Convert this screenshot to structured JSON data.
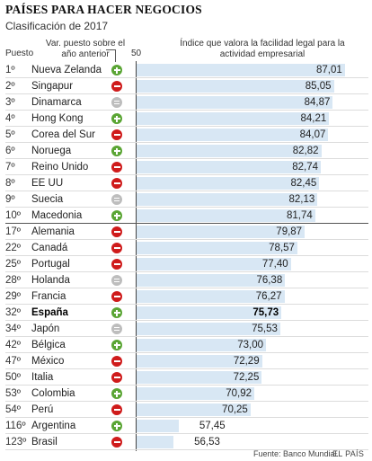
{
  "header": {
    "title": "PAÍSES PARA HACER NEGOCIOS",
    "subtitle": "Clasificación de 2017",
    "col_rank": "Puesto",
    "col_change": "Var. puesto sobre el año anterior",
    "axis_start": "50",
    "col_index": "Índice que valora la facilidad legal para la actividad empresarial"
  },
  "colors": {
    "bar": "#d8e7f4",
    "up": "#5aa534",
    "down": "#cf1b1b",
    "same": "#bdbdbd"
  },
  "chart_data": {
    "type": "bar",
    "orientation": "horizontal",
    "xlim": [
      50,
      88
    ],
    "categories": [
      "Nueva Zelanda",
      "Singapur",
      "Dinamarca",
      "Hong Kong",
      "Corea del Sur",
      "Noruega",
      "Reino Unido",
      "EE UU",
      "Suecia",
      "Macedonia",
      "Alemania",
      "Canadá",
      "Portugal",
      "Holanda",
      "Francia",
      "España",
      "Japón",
      "Bélgica",
      "México",
      "Italia",
      "Colombia",
      "Perú",
      "Argentina",
      "Brasil"
    ],
    "ranks": [
      "1º",
      "2º",
      "3º",
      "4º",
      "5º",
      "6º",
      "7º",
      "8º",
      "9º",
      "10º",
      "17º",
      "22º",
      "25º",
      "28º",
      "29º",
      "32º",
      "34º",
      "42º",
      "47º",
      "50º",
      "53º",
      "54º",
      "116º",
      "123º"
    ],
    "values": [
      87.01,
      85.05,
      84.87,
      84.21,
      84.07,
      82.82,
      82.74,
      82.45,
      82.13,
      81.74,
      79.87,
      78.57,
      77.4,
      76.38,
      76.27,
      75.73,
      75.53,
      73.0,
      72.29,
      72.25,
      70.92,
      70.25,
      57.45,
      56.53
    ],
    "labels": [
      "87,01",
      "85,05",
      "84,87",
      "84,21",
      "84,07",
      "82,82",
      "82,74",
      "82,45",
      "82,13",
      "81,74",
      "79,87",
      "78,57",
      "77,40",
      "76,38",
      "76,27",
      "75,73",
      "75,53",
      "73,00",
      "72,29",
      "72,25",
      "70,92",
      "70,25",
      "57,45",
      "56,53"
    ],
    "change": [
      "up",
      "down",
      "same",
      "up",
      "down",
      "up",
      "down",
      "down",
      "same",
      "up",
      "down",
      "down",
      "down",
      "same",
      "down",
      "up",
      "same",
      "up",
      "down",
      "down",
      "up",
      "down",
      "up",
      "down"
    ],
    "highlight": "España"
  },
  "footer": {
    "source": "Fuente: Banco Mundial.",
    "brand": "EL PAÍS"
  }
}
